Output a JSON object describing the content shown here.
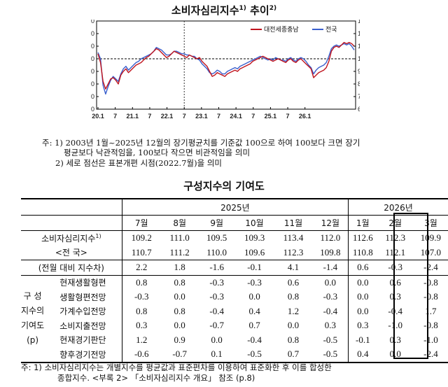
{
  "chart": {
    "title": "소비자심리지수",
    "title_sup1": "1)",
    "title_mid": " 추이",
    "title_sup2": "2)"
  },
  "chart_data": {
    "type": "line",
    "ylim": [
      60,
      130
    ],
    "yticks": [
      60,
      70,
      80,
      90,
      100,
      110,
      120,
      130
    ],
    "xticks": [
      "20.1",
      "7",
      "21.1",
      "7",
      "22.1",
      "7",
      "23.1",
      "7",
      "24.1",
      "7",
      "25.1",
      "7",
      "26.1"
    ],
    "reference_line": 100,
    "vertical_marker": "2022.7",
    "series": [
      {
        "name": "대전세종충남",
        "color": "#c0141e",
        "values": [
          104,
          97,
          82,
          76,
          80,
          84,
          85,
          83,
          80,
          87,
          90,
          92,
          89,
          91,
          93,
          95,
          96,
          97,
          99,
          101,
          102,
          104,
          106,
          108,
          107,
          105,
          103,
          101,
          102,
          104,
          106,
          105,
          104,
          103,
          102,
          101,
          103,
          102,
          101,
          100,
          101,
          98,
          96,
          94,
          90,
          86,
          87,
          89,
          88,
          87,
          86,
          88,
          89,
          90,
          91,
          90,
          92,
          93,
          94,
          95,
          96,
          98,
          99,
          100,
          101,
          102,
          101,
          100,
          99,
          98,
          99,
          100,
          99,
          98,
          97,
          99,
          100,
          98,
          97,
          99,
          100,
          98,
          96,
          94,
          92,
          85,
          87,
          89,
          90,
          91,
          93,
          98,
          106,
          109,
          110,
          109,
          111,
          113,
          112,
          113,
          112,
          110
        ]
      },
      {
        "name": "전국",
        "color": "#3a5fcd",
        "values": [
          105,
          100,
          79,
          72,
          78,
          83,
          86,
          84,
          82,
          88,
          92,
          94,
          91,
          93,
          95,
          97,
          98,
          100,
          101,
          102,
          103,
          104,
          106,
          109,
          108,
          107,
          105,
          103,
          103,
          104,
          106,
          106,
          105,
          104,
          104,
          103,
          103,
          102,
          102,
          100,
          99,
          96,
          94,
          92,
          89,
          88,
          89,
          91,
          90,
          88,
          88,
          90,
          91,
          92,
          93,
          92,
          94,
          95,
          96,
          97,
          98,
          99,
          100,
          101,
          102,
          101,
          100,
          99,
          100,
          99,
          101,
          100,
          99,
          99,
          98,
          100,
          101,
          99,
          98,
          100,
          101,
          100,
          98,
          95,
          93,
          88,
          91,
          93,
          94,
          95,
          97,
          102,
          108,
          110,
          111,
          110,
          111,
          112,
          111,
          112,
          110,
          107
        ]
      }
    ]
  },
  "chart_notes": [
    "주: 1) 2003년 1월~2025년 12월의 장기평균치를 기준값 100으로 하여 100보다 크면 장기",
    "평균보다 낙관적임을, 100보다 작으면 비관적임을 의미",
    "2) 세로 점선은 표본개편 시점(2022.7월)을 의미"
  ],
  "table": {
    "title": "구성지수의 기여도",
    "year_2025": "2025년",
    "year_2026": "2026년",
    "months": [
      "7월",
      "8월",
      "9월",
      "10월",
      "11월",
      "12월",
      "1월",
      "2월",
      "3월"
    ],
    "csi_label": "소비자심리지수",
    "csi_sup": "1)",
    "csi": [
      "109.2",
      "111.0",
      "109.5",
      "109.3",
      "113.4",
      "112.0",
      "112.6",
      "112.3",
      "109.9"
    ],
    "national_label": "<전 국>",
    "national": [
      "110.7",
      "111.2",
      "110.0",
      "109.6",
      "112.3",
      "109.8",
      "110.8",
      "112.1",
      "107.0"
    ],
    "diff_label": "(전월 대비 지수차)",
    "diff": [
      "2.2",
      "1.8",
      "-1.6",
      "-0.1",
      "4.1",
      "-1.4",
      "0.6",
      "-0.3",
      "-2.4"
    ],
    "group_label": [
      "구 성",
      "지수의",
      "기여도",
      "(p)"
    ],
    "components": [
      {
        "label": "현재생활형편",
        "values": [
          "0.8",
          "0.8",
          "-0.3",
          "-0.3",
          "0.6",
          "0.0",
          "0.0",
          "0.6",
          "-0.8"
        ]
      },
      {
        "label": "생활형편전망",
        "values": [
          "-0.3",
          "0.0",
          "-0.3",
          "0.0",
          "0.8",
          "-0.3",
          "0.0",
          "0.3",
          "-0.8"
        ]
      },
      {
        "label": "가계수입전망",
        "values": [
          "0.8",
          "0.8",
          "-0.4",
          "0.4",
          "1.2",
          "-0.4",
          "0.0",
          "-0.4",
          "1.7"
        ]
      },
      {
        "label": "소비지출전망",
        "values": [
          "0.3",
          "0.0",
          "-0.7",
          "0.7",
          "0.0",
          "0.3",
          "0.3",
          "-1.0",
          "-0.8"
        ]
      },
      {
        "label": "현재경기판단",
        "values": [
          "1.2",
          "0.9",
          "0.0",
          "-0.4",
          "0.8",
          "-0.5",
          "-0.1",
          "0.3",
          "-1.0"
        ]
      },
      {
        "label": "향후경기전망",
        "values": [
          "-0.6",
          "-0.7",
          "0.1",
          "-0.5",
          "0.7",
          "-0.5",
          "0.4",
          "0.0",
          "-2.4"
        ]
      }
    ]
  },
  "footnotes": [
    "주: 1) 소비자심리지수는 개별지수를 평균값과 표준편차를 이용하여 표준화한 후 이를 합성한",
    "종합지수. <부록 2> 「소비자심리지수 개요」 참조 (p.8)"
  ]
}
